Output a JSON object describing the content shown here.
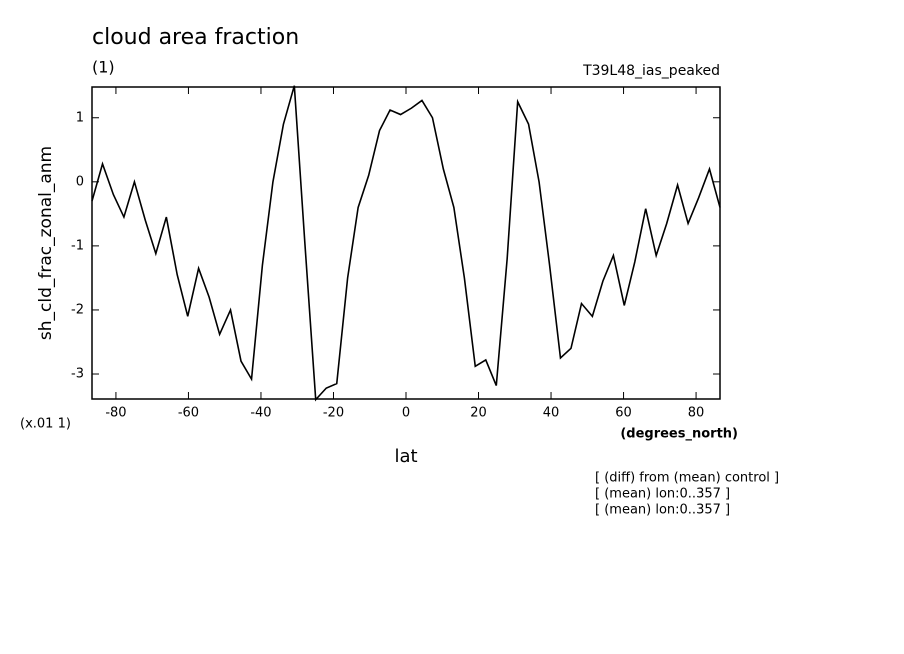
{
  "chart_data": {
    "type": "line",
    "title": "cloud area fraction",
    "subtitle": "(1)",
    "experiment": "T39L48_ias_peaked",
    "y_label": "sh_cld_frac_zonal_anm",
    "y_scale_note": "(x.01 1)",
    "x_label": "lat",
    "x_units": "(degrees_north)",
    "notes": [
      "[ (diff) from (mean) control ]",
      "[ (mean) lon:0..357 ]",
      "[ (mean) lon:0..357 ]"
    ],
    "x": [
      -86.6,
      -83.7,
      -80.7,
      -77.8,
      -74.9,
      -71.9,
      -69.0,
      -66.1,
      -63.1,
      -60.2,
      -57.2,
      -54.3,
      -51.4,
      -48.4,
      -45.5,
      -42.6,
      -39.6,
      -36.7,
      -33.8,
      -30.8,
      -27.9,
      -24.9,
      -22.0,
      -19.1,
      -16.1,
      -13.2,
      -10.3,
      -7.3,
      -4.4,
      -1.5,
      1.5,
      4.4,
      7.3,
      10.3,
      13.2,
      16.1,
      19.1,
      22.0,
      24.9,
      27.9,
      30.8,
      33.8,
      36.7,
      39.6,
      42.6,
      45.5,
      48.4,
      51.4,
      54.3,
      57.2,
      60.2,
      63.1,
      66.1,
      69.0,
      71.9,
      74.9,
      77.8,
      80.7,
      83.7,
      86.6
    ],
    "series": [
      {
        "color": "#000000",
        "values": [
          -0.3,
          0.28,
          -0.2,
          -0.55,
          0.0,
          -0.6,
          -1.12,
          -0.55,
          -1.45,
          -2.1,
          -1.35,
          -1.8,
          -2.38,
          -2.0,
          -2.8,
          -3.08,
          -1.3,
          0.0,
          0.9,
          1.5,
          -0.95,
          -3.4,
          -3.22,
          -3.15,
          -1.5,
          -0.4,
          0.1,
          0.8,
          1.12,
          1.05,
          1.15,
          1.27,
          1.0,
          0.2,
          -0.4,
          -1.5,
          -2.88,
          -2.78,
          -3.18,
          -1.2,
          1.25,
          0.9,
          0.0,
          -1.3,
          -2.75,
          -2.6,
          -1.9,
          -2.1,
          -1.55,
          -1.15,
          -1.93,
          -1.25,
          -0.42,
          -1.15,
          -0.65,
          -0.05,
          -0.65,
          -0.25,
          0.2,
          -0.4
        ]
      }
    ],
    "xlim": [
      -86.6,
      86.6
    ],
    "ylim": [
      -3.39,
      1.48
    ],
    "xticks": [
      -80,
      -60,
      -40,
      -20,
      0,
      20,
      40,
      60,
      80
    ],
    "yticks": [
      -3,
      -2,
      -1,
      0,
      1
    ],
    "grid": false
  }
}
